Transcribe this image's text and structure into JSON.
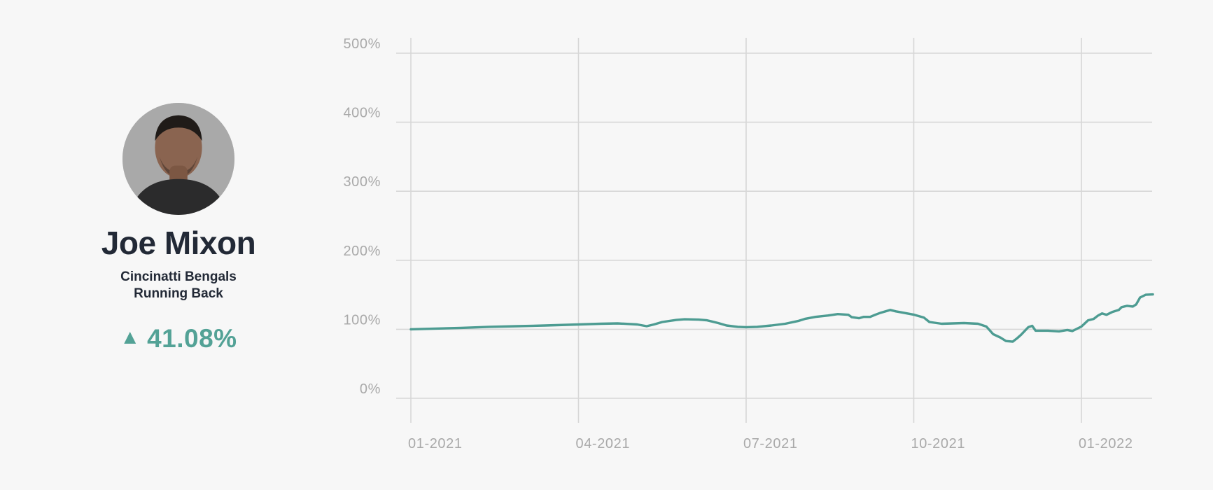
{
  "player": {
    "name": "Joe Mixon",
    "team": "Cincinatti Bengals",
    "position": "Running Back",
    "change_percent": "41.08%",
    "trend": "up"
  },
  "icons": {
    "trend_up": "▲",
    "avatar": "player-headshot"
  },
  "colors": {
    "background": "#f7f7f7",
    "line_teal": "#4d9c92",
    "delta_teal": "#53a296",
    "text_dark": "#222936",
    "grid": "#d7d7d7",
    "axis_label": "#a9a9a9",
    "avatar_bg": "#a9a9a9"
  },
  "chart_data": {
    "type": "line",
    "title": "",
    "xlabel": "",
    "ylabel": "",
    "unit": "%",
    "grid": true,
    "legend": false,
    "ylim": [
      0,
      500
    ],
    "xlim_months": [
      0,
      13.3
    ],
    "y_tick_values": [
      0,
      100,
      200,
      300,
      400,
      500
    ],
    "y_ticks": [
      "0%",
      "100%",
      "200%",
      "300%",
      "400%",
      "500%"
    ],
    "x_tick_months": [
      0,
      3,
      6,
      9,
      12
    ],
    "x_ticks": [
      "01-2021",
      "04-2021",
      "07-2021",
      "10-2021",
      "01-2022"
    ],
    "series": [
      {
        "name": "player-value-percent",
        "color": "#4d9c92",
        "points": [
          [
            0,
            100
          ],
          [
            0.45,
            101
          ],
          [
            0.9,
            102
          ],
          [
            1.4,
            103.5
          ],
          [
            1.9,
            104.5
          ],
          [
            2.4,
            105.5
          ],
          [
            3.0,
            107
          ],
          [
            3.4,
            108
          ],
          [
            3.7,
            108.5
          ],
          [
            4.05,
            107
          ],
          [
            4.22,
            104.5
          ],
          [
            4.35,
            107
          ],
          [
            4.5,
            110.5
          ],
          [
            4.75,
            113.5
          ],
          [
            4.9,
            114.5
          ],
          [
            5.15,
            114
          ],
          [
            5.3,
            113
          ],
          [
            5.5,
            109
          ],
          [
            5.65,
            105.5
          ],
          [
            5.85,
            103.5
          ],
          [
            6.0,
            103
          ],
          [
            6.2,
            103.5
          ],
          [
            6.45,
            105.5
          ],
          [
            6.7,
            108
          ],
          [
            6.93,
            112
          ],
          [
            7.05,
            115
          ],
          [
            7.24,
            118
          ],
          [
            7.47,
            120
          ],
          [
            7.64,
            122
          ],
          [
            7.83,
            121
          ],
          [
            7.89,
            117.5
          ],
          [
            8.02,
            116
          ],
          [
            8.1,
            118
          ],
          [
            8.22,
            118
          ],
          [
            8.31,
            121
          ],
          [
            8.41,
            124
          ],
          [
            8.58,
            128
          ],
          [
            8.68,
            126
          ],
          [
            8.81,
            124
          ],
          [
            9.01,
            121
          ],
          [
            9.18,
            117
          ],
          [
            9.28,
            110.5
          ],
          [
            9.5,
            108
          ],
          [
            9.7,
            108.5
          ],
          [
            9.9,
            109
          ],
          [
            10.15,
            108
          ],
          [
            10.3,
            104
          ],
          [
            10.42,
            93
          ],
          [
            10.55,
            88
          ],
          [
            10.65,
            83
          ],
          [
            10.77,
            82
          ],
          [
            10.85,
            87
          ],
          [
            10.92,
            92
          ],
          [
            11.05,
            103
          ],
          [
            11.12,
            105
          ],
          [
            11.18,
            98
          ],
          [
            11.4,
            98
          ],
          [
            11.6,
            97
          ],
          [
            11.75,
            99
          ],
          [
            11.84,
            97.5
          ],
          [
            12.0,
            104
          ],
          [
            12.12,
            113
          ],
          [
            12.22,
            115
          ],
          [
            12.3,
            120
          ],
          [
            12.37,
            123
          ],
          [
            12.45,
            121
          ],
          [
            12.55,
            125
          ],
          [
            12.67,
            128
          ],
          [
            12.72,
            132
          ],
          [
            12.82,
            134
          ],
          [
            12.92,
            133
          ],
          [
            12.98,
            136
          ],
          [
            13.05,
            146
          ],
          [
            13.15,
            150
          ],
          [
            13.28,
            150.5
          ]
        ]
      }
    ]
  }
}
